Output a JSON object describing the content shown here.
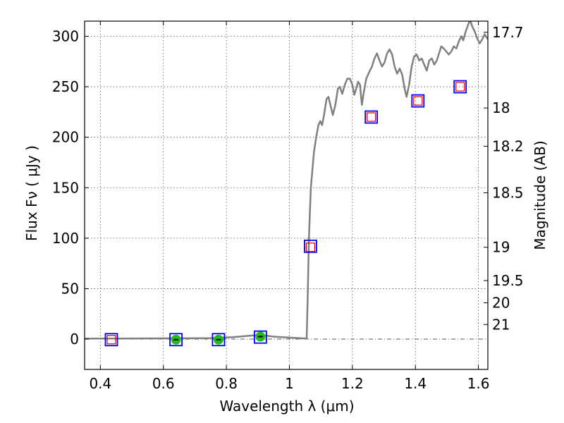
{
  "chart_data": {
    "type": "scatter",
    "title": "",
    "xlabel": "Wavelength  λ (μm)",
    "ylabel": "Flux  Fν  ( μJy )",
    "y2label": "Magnitude (AB)",
    "xlim": [
      0.35,
      1.63
    ],
    "ylim": [
      -30,
      315
    ],
    "grid": true,
    "colors": {
      "model_line": "#808080",
      "model_marker": "#0000ff",
      "observed_marker": "#dd0000",
      "detection_fill": "#22bb22",
      "zero_line": "#555555"
    },
    "x_ticks": [
      {
        "value": 0.4,
        "label": "0.4"
      },
      {
        "value": 0.6,
        "label": "0.6"
      },
      {
        "value": 0.8,
        "label": "0.8"
      },
      {
        "value": 1.0,
        "label": "1"
      },
      {
        "value": 1.2,
        "label": "1.2"
      },
      {
        "value": 1.4,
        "label": "1.4"
      },
      {
        "value": 1.6,
        "label": "1.6"
      }
    ],
    "y_ticks": [
      {
        "value": 0,
        "label": "0"
      },
      {
        "value": 50,
        "label": "50"
      },
      {
        "value": 100,
        "label": "100"
      },
      {
        "value": 150,
        "label": "150"
      },
      {
        "value": 200,
        "label": "200"
      },
      {
        "value": 250,
        "label": "250"
      },
      {
        "value": 300,
        "label": "300"
      }
    ],
    "y2_ticks": [
      {
        "flux": 304,
        "label": "17.7"
      },
      {
        "flux": 229,
        "label": "18"
      },
      {
        "flux": 191,
        "label": "18.2"
      },
      {
        "flux": 145,
        "label": "18.5"
      },
      {
        "flux": 91,
        "label": "19"
      },
      {
        "flux": 58,
        "label": "19.5"
      },
      {
        "flux": 36,
        "label": "20"
      },
      {
        "flux": 14.5,
        "label": "21"
      }
    ],
    "series": [
      {
        "kind": "model_spectrum",
        "points": [
          [
            0.35,
            0.5
          ],
          [
            0.45,
            0.6
          ],
          [
            0.55,
            0.7
          ],
          [
            0.65,
            0.8
          ],
          [
            0.75,
            1.0
          ],
          [
            0.82,
            2.0
          ],
          [
            0.88,
            3.5
          ],
          [
            0.91,
            4.0
          ],
          [
            0.95,
            2.5
          ],
          [
            1.0,
            1.5
          ],
          [
            1.055,
            0.5
          ],
          [
            1.058,
            40
          ],
          [
            1.062,
            100
          ],
          [
            1.068,
            150
          ],
          [
            1.078,
            185
          ],
          [
            1.085,
            200
          ],
          [
            1.092,
            212
          ],
          [
            1.098,
            216
          ],
          [
            1.104,
            212
          ],
          [
            1.11,
            222
          ],
          [
            1.118,
            238
          ],
          [
            1.124,
            240
          ],
          [
            1.13,
            232
          ],
          [
            1.138,
            222
          ],
          [
            1.146,
            232
          ],
          [
            1.154,
            248
          ],
          [
            1.16,
            250
          ],
          [
            1.168,
            243
          ],
          [
            1.176,
            252
          ],
          [
            1.184,
            258
          ],
          [
            1.192,
            258
          ],
          [
            1.2,
            252
          ],
          [
            1.206,
            242
          ],
          [
            1.212,
            248
          ],
          [
            1.218,
            255
          ],
          [
            1.224,
            252
          ],
          [
            1.23,
            232
          ],
          [
            1.236,
            244
          ],
          [
            1.244,
            258
          ],
          [
            1.254,
            265
          ],
          [
            1.262,
            270
          ],
          [
            1.27,
            278
          ],
          [
            1.278,
            283
          ],
          [
            1.286,
            276
          ],
          [
            1.294,
            270
          ],
          [
            1.302,
            274
          ],
          [
            1.31,
            283
          ],
          [
            1.318,
            287
          ],
          [
            1.326,
            282
          ],
          [
            1.334,
            270
          ],
          [
            1.342,
            263
          ],
          [
            1.35,
            268
          ],
          [
            1.358,
            262
          ],
          [
            1.366,
            248
          ],
          [
            1.372,
            240
          ],
          [
            1.38,
            252
          ],
          [
            1.388,
            270
          ],
          [
            1.396,
            280
          ],
          [
            1.404,
            282
          ],
          [
            1.412,
            276
          ],
          [
            1.42,
            278
          ],
          [
            1.428,
            272
          ],
          [
            1.436,
            266
          ],
          [
            1.444,
            276
          ],
          [
            1.452,
            278
          ],
          [
            1.46,
            272
          ],
          [
            1.468,
            276
          ],
          [
            1.476,
            284
          ],
          [
            1.482,
            290
          ],
          [
            1.49,
            288
          ],
          [
            1.498,
            285
          ],
          [
            1.506,
            282
          ],
          [
            1.514,
            285
          ],
          [
            1.522,
            290
          ],
          [
            1.53,
            288
          ],
          [
            1.538,
            295
          ],
          [
            1.546,
            300
          ],
          [
            1.552,
            296
          ],
          [
            1.56,
            305
          ],
          [
            1.568,
            312
          ],
          [
            1.574,
            316
          ],
          [
            1.58,
            310
          ],
          [
            1.588,
            305
          ],
          [
            1.596,
            298
          ],
          [
            1.604,
            293
          ],
          [
            1.612,
            297
          ],
          [
            1.62,
            302
          ],
          [
            1.63,
            297
          ]
        ]
      },
      {
        "kind": "photometry",
        "points": [
          {
            "x": 0.435,
            "y": -0.5,
            "model": -0.5,
            "detection": false
          },
          {
            "x": 0.64,
            "y": -0.5,
            "model": -0.5,
            "detection": true
          },
          {
            "x": 0.775,
            "y": -0.5,
            "model": -0.5,
            "detection": true
          },
          {
            "x": 0.908,
            "y": 2.5,
            "model": 2.0,
            "detection": true
          },
          {
            "x": 1.067,
            "y": 91,
            "model": 92,
            "detection": false
          },
          {
            "x": 1.26,
            "y": 220,
            "model": 220,
            "detection": false
          },
          {
            "x": 1.408,
            "y": 236,
            "model": 236,
            "detection": false
          },
          {
            "x": 1.542,
            "y": 250,
            "model": 250,
            "detection": false
          }
        ]
      }
    ]
  }
}
